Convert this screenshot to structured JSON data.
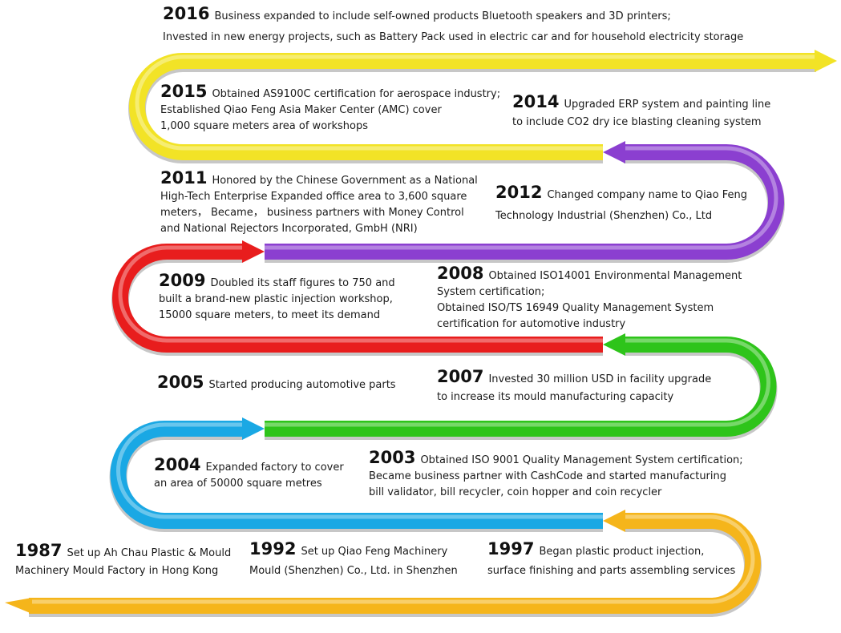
{
  "colors": {
    "yellow": "#f2e326",
    "purple": "#8b3fd0",
    "red": "#e81d1d",
    "green": "#2ec41a",
    "blue": "#1aa8e4",
    "orange": "#f5b51b"
  },
  "events": [
    {
      "year": "2016",
      "l1": "Business expanded to include self-owned products Bluetooth speakers and 3D printers;",
      "l2": "Invested in new energy projects, such as Battery Pack used in electric car and for household electricity storage",
      "l3": "",
      "l4": ""
    },
    {
      "year": "2015",
      "l1": "Obtained AS9100C certification for aerospace industry;",
      "l2": "Established Qiao Feng Asia Maker Center (AMC) cover",
      "l3": "1,000 square meters area of workshops",
      "l4": ""
    },
    {
      "year": "2014",
      "l1": "Upgraded ERP system and painting line",
      "l2": "to include CO2 dry ice blasting cleaning system",
      "l3": "",
      "l4": ""
    },
    {
      "year": "2012",
      "l1": "Changed company name to Qiao Feng",
      "l2": "Technology Industrial (Shenzhen) Co., Ltd",
      "l3": "",
      "l4": ""
    },
    {
      "year": "2011",
      "l1": "Honored by the Chinese Government as a National",
      "l2": "High-Tech Enterprise Expanded office area to 3,600 square",
      "l3": "meters， Became， business partners with Money Control",
      "l4": "and National Rejectors Incorporated, GmbH (NRI)"
    },
    {
      "year": "2009",
      "l1": "Doubled its staff figures to 750 and",
      "l2": "built a brand-new plastic injection workshop,",
      "l3": "15000 square meters, to meet its demand",
      "l4": ""
    },
    {
      "year": "2008",
      "l1": "Obtained ISO14001 Environmental Management",
      "l2": "System certification;",
      "l3": "Obtained ISO/TS 16949 Quality Management System",
      "l4": "certification for automotive industry"
    },
    {
      "year": "2007",
      "l1": "Invested 30 million USD in facility upgrade",
      "l2": "to increase its mould manufacturing capacity",
      "l3": "",
      "l4": ""
    },
    {
      "year": "2005",
      "l1": "Started producing automotive parts",
      "l2": "",
      "l3": "",
      "l4": ""
    },
    {
      "year": "2004",
      "l1": "Expanded factory to cover",
      "l2": "an area of 50000 square metres",
      "l3": "",
      "l4": ""
    },
    {
      "year": "2003",
      "l1": "Obtained ISO 9001 Quality Management System certification;",
      "l2": "Became business partner with CashCode and started manufacturing",
      "l3": "bill validator, bill recycler, coin hopper and coin recycler",
      "l4": ""
    },
    {
      "year": "1997",
      "l1": "Began plastic product injection,",
      "l2": "surface finishing and parts assembling services",
      "l3": "",
      "l4": ""
    },
    {
      "year": "1992",
      "l1": "Set up Qiao Feng Machinery",
      "l2": "Mould (Shenzhen) Co., Ltd. in Shenzhen",
      "l3": "",
      "l4": ""
    },
    {
      "year": "1987",
      "l1": "Set up Ah Chau Plastic & Mould",
      "l2": "Machinery Mould Factory in Hong Kong",
      "l3": "",
      "l4": ""
    }
  ]
}
